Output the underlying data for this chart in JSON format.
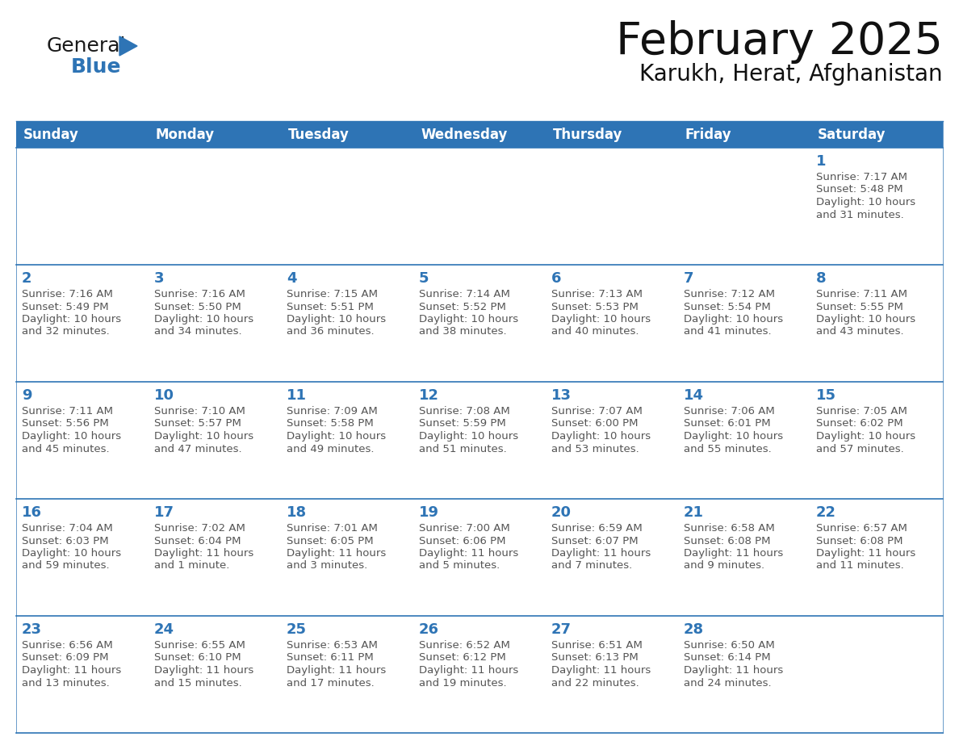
{
  "title": "February 2025",
  "subtitle": "Karukh, Herat, Afghanistan",
  "header_color": "#2E74B5",
  "header_text_color": "#FFFFFF",
  "cell_border_color": "#2E74B5",
  "day_number_color": "#2E74B5",
  "detail_text_color": "#555555",
  "background_color": "#FFFFFF",
  "days_of_week": [
    "Sunday",
    "Monday",
    "Tuesday",
    "Wednesday",
    "Thursday",
    "Friday",
    "Saturday"
  ],
  "calendar_data": [
    [
      null,
      null,
      null,
      null,
      null,
      null,
      {
        "day": "1",
        "sunrise": "7:17 AM",
        "sunset": "5:48 PM",
        "daylight1": "10 hours",
        "daylight2": "and 31 minutes."
      }
    ],
    [
      {
        "day": "2",
        "sunrise": "7:16 AM",
        "sunset": "5:49 PM",
        "daylight1": "10 hours",
        "daylight2": "and 32 minutes."
      },
      {
        "day": "3",
        "sunrise": "7:16 AM",
        "sunset": "5:50 PM",
        "daylight1": "10 hours",
        "daylight2": "and 34 minutes."
      },
      {
        "day": "4",
        "sunrise": "7:15 AM",
        "sunset": "5:51 PM",
        "daylight1": "10 hours",
        "daylight2": "and 36 minutes."
      },
      {
        "day": "5",
        "sunrise": "7:14 AM",
        "sunset": "5:52 PM",
        "daylight1": "10 hours",
        "daylight2": "and 38 minutes."
      },
      {
        "day": "6",
        "sunrise": "7:13 AM",
        "sunset": "5:53 PM",
        "daylight1": "10 hours",
        "daylight2": "and 40 minutes."
      },
      {
        "day": "7",
        "sunrise": "7:12 AM",
        "sunset": "5:54 PM",
        "daylight1": "10 hours",
        "daylight2": "and 41 minutes."
      },
      {
        "day": "8",
        "sunrise": "7:11 AM",
        "sunset": "5:55 PM",
        "daylight1": "10 hours",
        "daylight2": "and 43 minutes."
      }
    ],
    [
      {
        "day": "9",
        "sunrise": "7:11 AM",
        "sunset": "5:56 PM",
        "daylight1": "10 hours",
        "daylight2": "and 45 minutes."
      },
      {
        "day": "10",
        "sunrise": "7:10 AM",
        "sunset": "5:57 PM",
        "daylight1": "10 hours",
        "daylight2": "and 47 minutes."
      },
      {
        "day": "11",
        "sunrise": "7:09 AM",
        "sunset": "5:58 PM",
        "daylight1": "10 hours",
        "daylight2": "and 49 minutes."
      },
      {
        "day": "12",
        "sunrise": "7:08 AM",
        "sunset": "5:59 PM",
        "daylight1": "10 hours",
        "daylight2": "and 51 minutes."
      },
      {
        "day": "13",
        "sunrise": "7:07 AM",
        "sunset": "6:00 PM",
        "daylight1": "10 hours",
        "daylight2": "and 53 minutes."
      },
      {
        "day": "14",
        "sunrise": "7:06 AM",
        "sunset": "6:01 PM",
        "daylight1": "10 hours",
        "daylight2": "and 55 minutes."
      },
      {
        "day": "15",
        "sunrise": "7:05 AM",
        "sunset": "6:02 PM",
        "daylight1": "10 hours",
        "daylight2": "and 57 minutes."
      }
    ],
    [
      {
        "day": "16",
        "sunrise": "7:04 AM",
        "sunset": "6:03 PM",
        "daylight1": "10 hours",
        "daylight2": "and 59 minutes."
      },
      {
        "day": "17",
        "sunrise": "7:02 AM",
        "sunset": "6:04 PM",
        "daylight1": "11 hours",
        "daylight2": "and 1 minute."
      },
      {
        "day": "18",
        "sunrise": "7:01 AM",
        "sunset": "6:05 PM",
        "daylight1": "11 hours",
        "daylight2": "and 3 minutes."
      },
      {
        "day": "19",
        "sunrise": "7:00 AM",
        "sunset": "6:06 PM",
        "daylight1": "11 hours",
        "daylight2": "and 5 minutes."
      },
      {
        "day": "20",
        "sunrise": "6:59 AM",
        "sunset": "6:07 PM",
        "daylight1": "11 hours",
        "daylight2": "and 7 minutes."
      },
      {
        "day": "21",
        "sunrise": "6:58 AM",
        "sunset": "6:08 PM",
        "daylight1": "11 hours",
        "daylight2": "and 9 minutes."
      },
      {
        "day": "22",
        "sunrise": "6:57 AM",
        "sunset": "6:08 PM",
        "daylight1": "11 hours",
        "daylight2": "and 11 minutes."
      }
    ],
    [
      {
        "day": "23",
        "sunrise": "6:56 AM",
        "sunset": "6:09 PM",
        "daylight1": "11 hours",
        "daylight2": "and 13 minutes."
      },
      {
        "day": "24",
        "sunrise": "6:55 AM",
        "sunset": "6:10 PM",
        "daylight1": "11 hours",
        "daylight2": "and 15 minutes."
      },
      {
        "day": "25",
        "sunrise": "6:53 AM",
        "sunset": "6:11 PM",
        "daylight1": "11 hours",
        "daylight2": "and 17 minutes."
      },
      {
        "day": "26",
        "sunrise": "6:52 AM",
        "sunset": "6:12 PM",
        "daylight1": "11 hours",
        "daylight2": "and 19 minutes."
      },
      {
        "day": "27",
        "sunrise": "6:51 AM",
        "sunset": "6:13 PM",
        "daylight1": "11 hours",
        "daylight2": "and 22 minutes."
      },
      {
        "day": "28",
        "sunrise": "6:50 AM",
        "sunset": "6:14 PM",
        "daylight1": "11 hours",
        "daylight2": "and 24 minutes."
      },
      null
    ]
  ],
  "logo_general_color": "#1a1a1a",
  "logo_blue_color": "#2E74B5",
  "title_fontsize": 40,
  "subtitle_fontsize": 20,
  "header_fontsize": 12,
  "day_num_fontsize": 13,
  "detail_fontsize": 9.5
}
